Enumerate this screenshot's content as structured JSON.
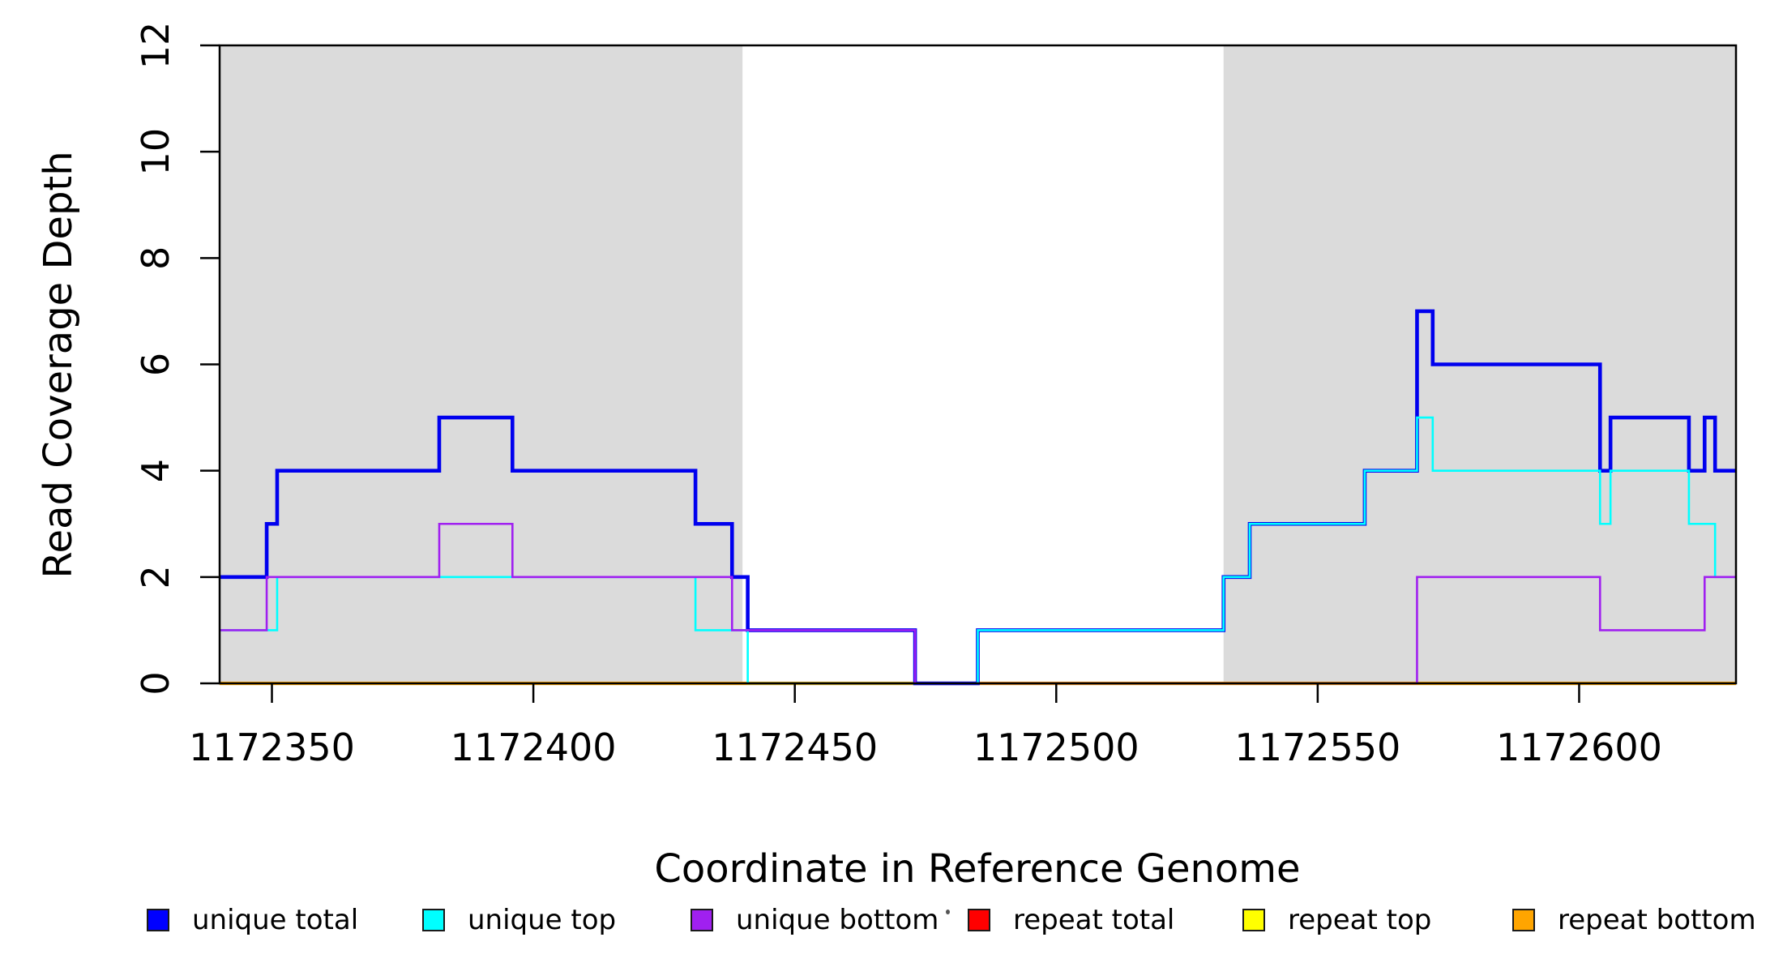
{
  "chart_data": {
    "type": "line",
    "subtype": "step",
    "title": "",
    "xlabel": "Coordinate in Reference Genome",
    "ylabel": "Read Coverage Depth",
    "x_range": [
      1172340,
      1172630
    ],
    "y_range": [
      0,
      12
    ],
    "x_ticks": [
      1172350,
      1172400,
      1172450,
      1172500,
      1172550,
      1172600
    ],
    "y_ticks": [
      0,
      2,
      4,
      6,
      8,
      10,
      12
    ],
    "grid": "off",
    "shade_color": "#dbdbdb",
    "shaded_regions": [
      [
        1172340,
        1172440
      ],
      [
        1172532,
        1172630
      ]
    ],
    "series": [
      {
        "name": "repeat total",
        "color": "#ff0000",
        "steps": [
          [
            1172340,
            0
          ]
        ]
      },
      {
        "name": "repeat top",
        "color": "#ffff00",
        "steps": [
          [
            1172340,
            0
          ]
        ]
      },
      {
        "name": "repeat bottom",
        "color": "#ffa500",
        "steps": [
          [
            1172340,
            0
          ]
        ]
      },
      {
        "name": "unique total",
        "color": "#0000ee",
        "steps": [
          [
            1172340,
            2
          ],
          [
            1172349,
            3
          ],
          [
            1172351,
            4
          ],
          [
            1172382,
            5
          ],
          [
            1172396,
            4
          ],
          [
            1172431,
            3
          ],
          [
            1172438,
            2
          ],
          [
            1172441,
            1
          ],
          [
            1172473,
            0
          ],
          [
            1172485,
            1
          ],
          [
            1172532,
            2
          ],
          [
            1172537,
            3
          ],
          [
            1172559,
            4
          ],
          [
            1172569,
            7
          ],
          [
            1172572,
            6
          ],
          [
            1172604,
            4
          ],
          [
            1172606,
            5
          ],
          [
            1172621,
            4
          ],
          [
            1172624,
            5
          ],
          [
            1172626,
            4
          ]
        ]
      },
      {
        "name": "unique top",
        "color": "#00ffff",
        "steps": [
          [
            1172340,
            1
          ],
          [
            1172351,
            2
          ],
          [
            1172431,
            1
          ],
          [
            1172441,
            0
          ],
          [
            1172485,
            1
          ],
          [
            1172532,
            2
          ],
          [
            1172537,
            3
          ],
          [
            1172559,
            4
          ],
          [
            1172569,
            5
          ],
          [
            1172572,
            4
          ],
          [
            1172604,
            3
          ],
          [
            1172606,
            4
          ],
          [
            1172621,
            3
          ],
          [
            1172626,
            2
          ]
        ]
      },
      {
        "name": "unique bottom",
        "color": "#a020f0",
        "steps": [
          [
            1172340,
            1
          ],
          [
            1172349,
            2
          ],
          [
            1172382,
            3
          ],
          [
            1172396,
            2
          ],
          [
            1172438,
            1
          ],
          [
            1172473,
            0
          ],
          [
            1172569,
            2
          ],
          [
            1172604,
            1
          ],
          [
            1172624,
            2
          ]
        ]
      }
    ],
    "legend_position": "bottom"
  },
  "legend": {
    "items": [
      {
        "label": "unique total",
        "color": "#0000ff"
      },
      {
        "label": "unique top",
        "color": "#00ffff"
      },
      {
        "label": "unique bottom",
        "color": "#a020f0"
      },
      {
        "label": "repeat total",
        "color": "#ff0000"
      },
      {
        "label": "repeat top",
        "color": "#ffff00"
      },
      {
        "label": "repeat bottom",
        "color": "#ffa500"
      }
    ]
  }
}
